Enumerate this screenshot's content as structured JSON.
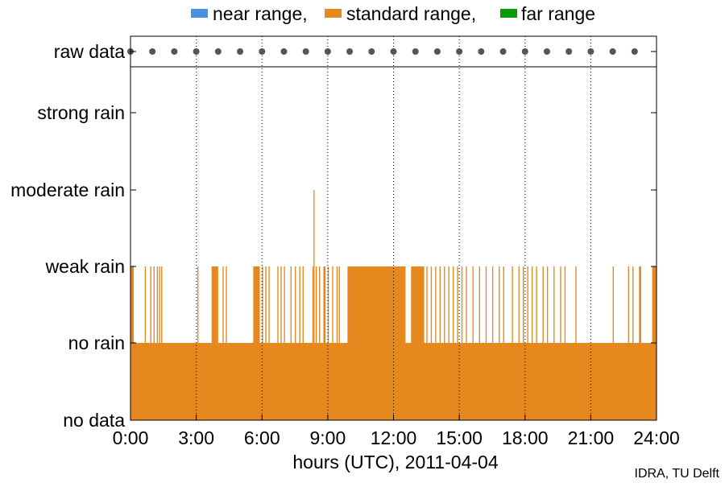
{
  "chart_data": {
    "type": "area",
    "title": "",
    "xlabel": "hours (UTC), 2011-04-04",
    "ylabel": "",
    "xlim": [
      0,
      24
    ],
    "x_ticks": [
      "0:00",
      "3:00",
      "6:00",
      "9:00",
      "12:00",
      "15:00",
      "18:00",
      "21:00",
      "24:00"
    ],
    "y_categories": [
      "no data",
      "no rain",
      "weak rain",
      "moderate rain",
      "strong rain",
      "raw data"
    ],
    "grid": "vertical dotted lines at 3-hour ticks",
    "legend": {
      "placement": "top",
      "items": [
        {
          "label": "near range,",
          "color": "#4a90e2"
        },
        {
          "label": "standard range,",
          "color": "#e5881e"
        },
        {
          "label": "far range",
          "color": "#0a9a0a"
        }
      ]
    },
    "raw_data_times": [
      0,
      1,
      2,
      3,
      4,
      5,
      6,
      7,
      8,
      9,
      10,
      11,
      12,
      13,
      14,
      15,
      16,
      17,
      18,
      19,
      20,
      21,
      22,
      23
    ],
    "series": [
      {
        "name": "standard range",
        "color": "#e5881e",
        "baseline_level": 1,
        "weak_rain_intervals": [
          [
            0.0,
            0.15
          ],
          [
            0.65,
            0.7
          ],
          [
            0.9,
            0.95
          ],
          [
            1.05,
            1.1
          ],
          [
            1.2,
            1.25
          ],
          [
            1.3,
            1.35
          ],
          [
            1.4,
            1.45
          ],
          [
            3.05,
            3.1
          ],
          [
            3.7,
            4.0
          ],
          [
            4.2,
            4.25
          ],
          [
            4.35,
            4.4
          ],
          [
            5.6,
            5.9
          ],
          [
            6.0,
            6.05
          ],
          [
            6.15,
            6.2
          ],
          [
            6.3,
            6.35
          ],
          [
            6.7,
            6.75
          ],
          [
            6.85,
            6.9
          ],
          [
            7.0,
            7.05
          ],
          [
            7.3,
            7.35
          ],
          [
            7.5,
            7.55
          ],
          [
            7.7,
            7.75
          ],
          [
            7.85,
            7.9
          ],
          [
            8.3,
            8.35
          ],
          [
            8.45,
            8.5
          ],
          [
            8.6,
            8.65
          ],
          [
            8.8,
            8.9
          ],
          [
            9.0,
            9.05
          ],
          [
            9.2,
            9.25
          ],
          [
            9.4,
            9.45
          ],
          [
            9.5,
            9.55
          ],
          [
            9.9,
            12.55
          ],
          [
            12.8,
            13.4
          ],
          [
            13.5,
            13.55
          ],
          [
            13.7,
            13.75
          ],
          [
            13.9,
            13.95
          ],
          [
            14.1,
            14.15
          ],
          [
            14.3,
            14.35
          ],
          [
            14.5,
            14.55
          ],
          [
            14.7,
            14.75
          ],
          [
            14.9,
            14.95
          ],
          [
            15.1,
            15.15
          ],
          [
            15.3,
            15.35
          ],
          [
            15.6,
            15.65
          ],
          [
            15.9,
            15.95
          ],
          [
            16.2,
            16.25
          ],
          [
            16.5,
            16.55
          ],
          [
            16.8,
            16.85
          ],
          [
            17.0,
            17.05
          ],
          [
            17.4,
            17.45
          ],
          [
            17.7,
            17.75
          ],
          [
            17.9,
            17.95
          ],
          [
            18.1,
            18.15
          ],
          [
            18.3,
            18.35
          ],
          [
            18.5,
            18.55
          ],
          [
            18.8,
            18.85
          ],
          [
            19.0,
            19.05
          ],
          [
            19.3,
            19.35
          ],
          [
            19.6,
            19.65
          ],
          [
            19.8,
            19.85
          ],
          [
            20.3,
            20.35
          ],
          [
            22.0,
            22.05
          ],
          [
            22.7,
            22.75
          ],
          [
            22.9,
            22.95
          ],
          [
            23.2,
            23.3
          ],
          [
            23.8,
            24.0
          ]
        ],
        "moderate_rain_times": [
          8.35
        ]
      }
    ]
  },
  "credit": "IDRA, TU Delft"
}
